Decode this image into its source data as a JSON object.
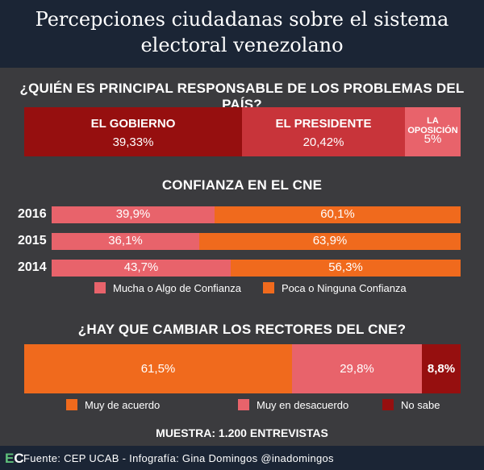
{
  "title_line1": "Percepciones ciudadanas sobre el sistema",
  "title_line2": "electoral venezolano",
  "colors": {
    "dark_red": "#960f0f",
    "medium_red": "#c8343a",
    "pink": "#e8636b",
    "orange": "#f06a1d",
    "header_bg": "#1b2535",
    "page_bg": "#3b3b3e"
  },
  "chart_data": [
    {
      "type": "bar",
      "orientation": "horizontal-stacked",
      "title": "¿QUIÉN ES PRINCIPAL RESPONSABLE DE LOS PROBLEMAS DEL PAÍS?",
      "segments": [
        {
          "label": "EL GOBIERNO",
          "value": 39.33,
          "value_label": "39,33%"
        },
        {
          "label": "EL PRESIDENTE",
          "value": 20.42,
          "value_label": "20,42%"
        },
        {
          "label": "LA OPOSICIÓN",
          "value": 5,
          "value_label": "5%"
        }
      ]
    },
    {
      "type": "bar",
      "orientation": "horizontal-stacked",
      "title": "CONFIANZA EN EL CNE",
      "categories": [
        "2016",
        "2015",
        "2014"
      ],
      "series": [
        {
          "name": "Mucha o Algo de Confianza",
          "values": [
            39.9,
            36.1,
            43.7
          ],
          "labels": [
            "39,9%",
            "36,1%",
            "43,7%"
          ]
        },
        {
          "name": "Poca o Ninguna Confianza",
          "values": [
            60.1,
            63.9,
            56.3
          ],
          "labels": [
            "60,1%",
            "63,9%",
            "56,3%"
          ]
        }
      ],
      "legend": "bottom"
    },
    {
      "type": "bar",
      "orientation": "horizontal-stacked",
      "title": "¿HAY QUE CAMBIAR LOS RECTORES DEL CNE?",
      "series": [
        {
          "name": "Muy de acuerdo",
          "value": 61.5,
          "label": "61,5%"
        },
        {
          "name": "Muy en desacuerdo",
          "value": 29.8,
          "label": "29,8%"
        },
        {
          "name": "No sabe",
          "value": 8.8,
          "label": "8,8%"
        }
      ],
      "legend": "bottom"
    }
  ],
  "sample_text": "MUESTRA: 1.200 ENTREVISTAS",
  "footer": {
    "logo_e": "E",
    "logo_c": "C",
    "text": "Fuente: CEP UCAB - Infografía: Gina Domingos @inadomingos"
  }
}
